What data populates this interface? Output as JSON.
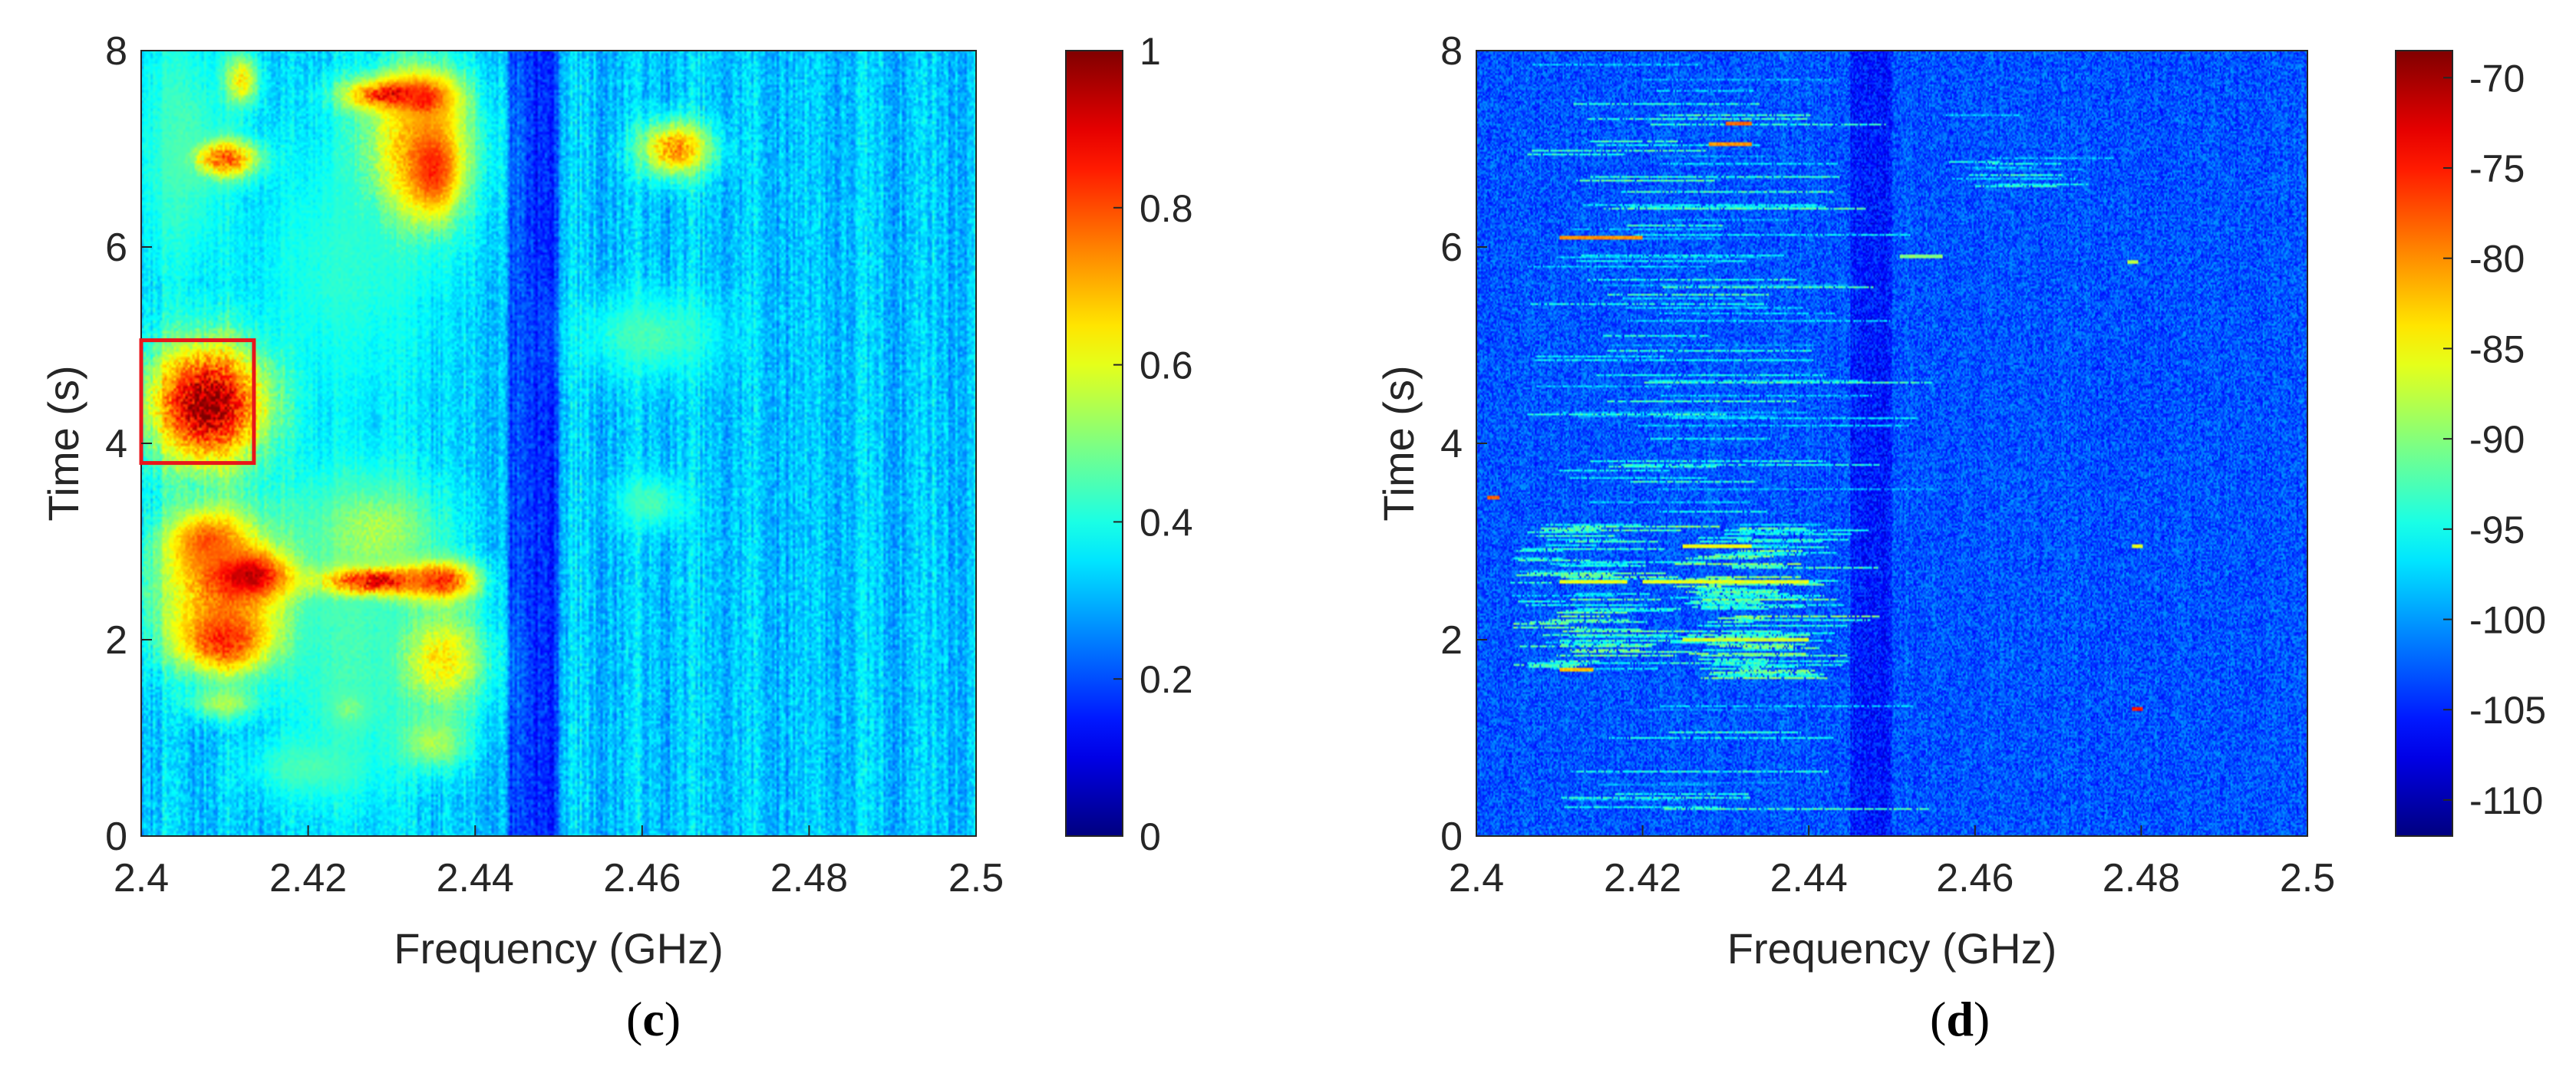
{
  "chart_data": [
    {
      "type": "heatmap",
      "panel_label": "c",
      "xlabel": "Frequency (GHz)",
      "ylabel": "Time (s)",
      "xlim": [
        2.4,
        2.5
      ],
      "ylim": [
        0,
        8
      ],
      "xticks": [
        "2.4",
        "2.42",
        "2.44",
        "2.46",
        "2.48",
        "2.5"
      ],
      "yticks": [
        "0",
        "2",
        "4",
        "6",
        "8"
      ],
      "colorbar": {
        "min": 0,
        "max": 1,
        "ticks": [
          "0",
          "0.2",
          "0.4",
          "0.6",
          "0.8",
          "1"
        ],
        "colormap": "jet"
      },
      "background_level": 0.32,
      "dark_band": {
        "x": [
          2.444,
          2.45
        ],
        "level": 0.18
      },
      "blobs": [
        {
          "x": 2.408,
          "y": 4.4,
          "wx": 0.005,
          "wy": 0.45,
          "v": 1.0
        },
        {
          "x": 2.412,
          "y": 7.7,
          "wx": 0.0015,
          "wy": 0.2,
          "v": 0.65
        },
        {
          "x": 2.41,
          "y": 6.9,
          "wx": 0.003,
          "wy": 0.15,
          "v": 0.8
        },
        {
          "x": 2.43,
          "y": 7.55,
          "wx": 0.004,
          "wy": 0.12,
          "v": 0.9
        },
        {
          "x": 2.434,
          "y": 7.5,
          "wx": 0.0025,
          "wy": 0.18,
          "v": 0.85
        },
        {
          "x": 2.433,
          "y": 7.0,
          "wx": 0.005,
          "wy": 0.6,
          "v": 0.7
        },
        {
          "x": 2.435,
          "y": 6.8,
          "wx": 0.002,
          "wy": 0.3,
          "v": 0.85
        },
        {
          "x": 2.464,
          "y": 7.0,
          "wx": 0.003,
          "wy": 0.2,
          "v": 0.75
        },
        {
          "x": 2.461,
          "y": 5.1,
          "wx": 0.006,
          "wy": 0.3,
          "v": 0.45
        },
        {
          "x": 2.461,
          "y": 3.4,
          "wx": 0.003,
          "wy": 0.2,
          "v": 0.45
        },
        {
          "x": 2.41,
          "y": 2.6,
          "wx": 0.006,
          "wy": 0.5,
          "v": 0.75
        },
        {
          "x": 2.413,
          "y": 2.65,
          "wx": 0.003,
          "wy": 0.15,
          "v": 0.95
        },
        {
          "x": 2.41,
          "y": 2.0,
          "wx": 0.004,
          "wy": 0.25,
          "v": 0.85
        },
        {
          "x": 2.41,
          "y": 1.35,
          "wx": 0.003,
          "wy": 0.12,
          "v": 0.55
        },
        {
          "x": 2.408,
          "y": 3.0,
          "wx": 0.003,
          "wy": 0.2,
          "v": 0.8
        },
        {
          "x": 2.428,
          "y": 2.6,
          "wx": 0.005,
          "wy": 0.12,
          "v": 0.9
        },
        {
          "x": 2.436,
          "y": 2.6,
          "wx": 0.003,
          "wy": 0.15,
          "v": 0.85
        },
        {
          "x": 2.436,
          "y": 1.8,
          "wx": 0.004,
          "wy": 0.4,
          "v": 0.65
        },
        {
          "x": 2.428,
          "y": 3.1,
          "wx": 0.006,
          "wy": 0.4,
          "v": 0.55
        },
        {
          "x": 2.435,
          "y": 0.95,
          "wx": 0.003,
          "wy": 0.2,
          "v": 0.55
        },
        {
          "x": 2.425,
          "y": 1.3,
          "wx": 0.002,
          "wy": 0.15,
          "v": 0.5
        },
        {
          "x": 2.425,
          "y": 2.0,
          "wx": 0.006,
          "wy": 1.2,
          "v": 0.45
        },
        {
          "x": 2.42,
          "y": 0.7,
          "wx": 0.005,
          "wy": 0.2,
          "v": 0.45
        },
        {
          "x": 2.425,
          "y": 5.8,
          "wx": 0.008,
          "wy": 1.0,
          "v": 0.42
        },
        {
          "x": 2.405,
          "y": 7.0,
          "wx": 0.004,
          "wy": 1.0,
          "v": 0.45
        }
      ],
      "annotation_box": {
        "x": [
          2.4,
          2.4135
        ],
        "y": [
          3.8,
          5.05
        ],
        "color": "#e8161b"
      }
    },
    {
      "type": "heatmap",
      "panel_label": "d",
      "xlabel": "Frequency (GHz)",
      "ylabel": "Time (s)",
      "xlim": [
        2.4,
        2.5
      ],
      "ylim": [
        0,
        8
      ],
      "xticks": [
        "2.4",
        "2.42",
        "2.44",
        "2.46",
        "2.48",
        "2.5"
      ],
      "yticks": [
        "0",
        "2",
        "4",
        "6",
        "8"
      ],
      "colorbar": {
        "min": -112,
        "max": -68.5,
        "ticks": [
          "-110",
          "-105",
          "-100",
          "-95",
          "-90",
          "-85",
          "-80",
          "-75",
          "-70"
        ],
        "colormap": "jet"
      },
      "background_level": -103,
      "dark_band": {
        "x": [
          2.445,
          2.45
        ],
        "level": -105.5
      },
      "burst_regions": [
        {
          "x": [
            2.404,
            2.421
          ],
          "y": [
            1.7,
            3.2
          ],
          "density": 0.65,
          "level": -94
        },
        {
          "x": [
            2.423,
            2.441
          ],
          "y": [
            1.6,
            3.2
          ],
          "density": 0.7,
          "level": -93
        },
        {
          "x": [
            2.406,
            2.441
          ],
          "y": [
            0.1,
            1.6
          ],
          "density": 0.18,
          "level": -97
        },
        {
          "x": [
            2.406,
            2.441
          ],
          "y": [
            3.3,
            8.0
          ],
          "density": 0.22,
          "level": -96
        },
        {
          "x": [
            2.455,
            2.47
          ],
          "y": [
            6.6,
            7.6
          ],
          "density": 0.3,
          "level": -97
        }
      ],
      "hot_lines": [
        {
          "x": [
            2.41,
            2.42
          ],
          "y": 6.1,
          "value": -80
        },
        {
          "x": [
            2.428,
            2.433
          ],
          "y": 7.05,
          "value": -80
        },
        {
          "x": [
            2.43,
            2.433
          ],
          "y": 7.25,
          "value": -78
        },
        {
          "x": [
            2.41,
            2.418
          ],
          "y": 2.6,
          "value": -86
        },
        {
          "x": [
            2.42,
            2.44
          ],
          "y": 2.6,
          "value": -86
        },
        {
          "x": [
            2.425,
            2.44
          ],
          "y": 2.0,
          "value": -87
        },
        {
          "x": [
            2.425,
            2.433
          ],
          "y": 2.95,
          "value": -85
        },
        {
          "x": [
            2.41,
            2.414
          ],
          "y": 1.7,
          "value": -82
        },
        {
          "x": [
            2.451,
            2.456
          ],
          "y": 5.9,
          "value": -90
        },
        {
          "x": 2.4795,
          "y": 1.3,
          "value": -75,
          "kind": "dot"
        },
        {
          "x": 2.4795,
          "y": 2.95,
          "value": -86,
          "kind": "dot"
        },
        {
          "x": 2.479,
          "y": 5.85,
          "value": -88,
          "kind": "dot"
        },
        {
          "x": 2.402,
          "y": 3.45,
          "value": -78,
          "kind": "dot"
        }
      ]
    }
  ],
  "captions": {
    "c": "c",
    "d": "d"
  }
}
